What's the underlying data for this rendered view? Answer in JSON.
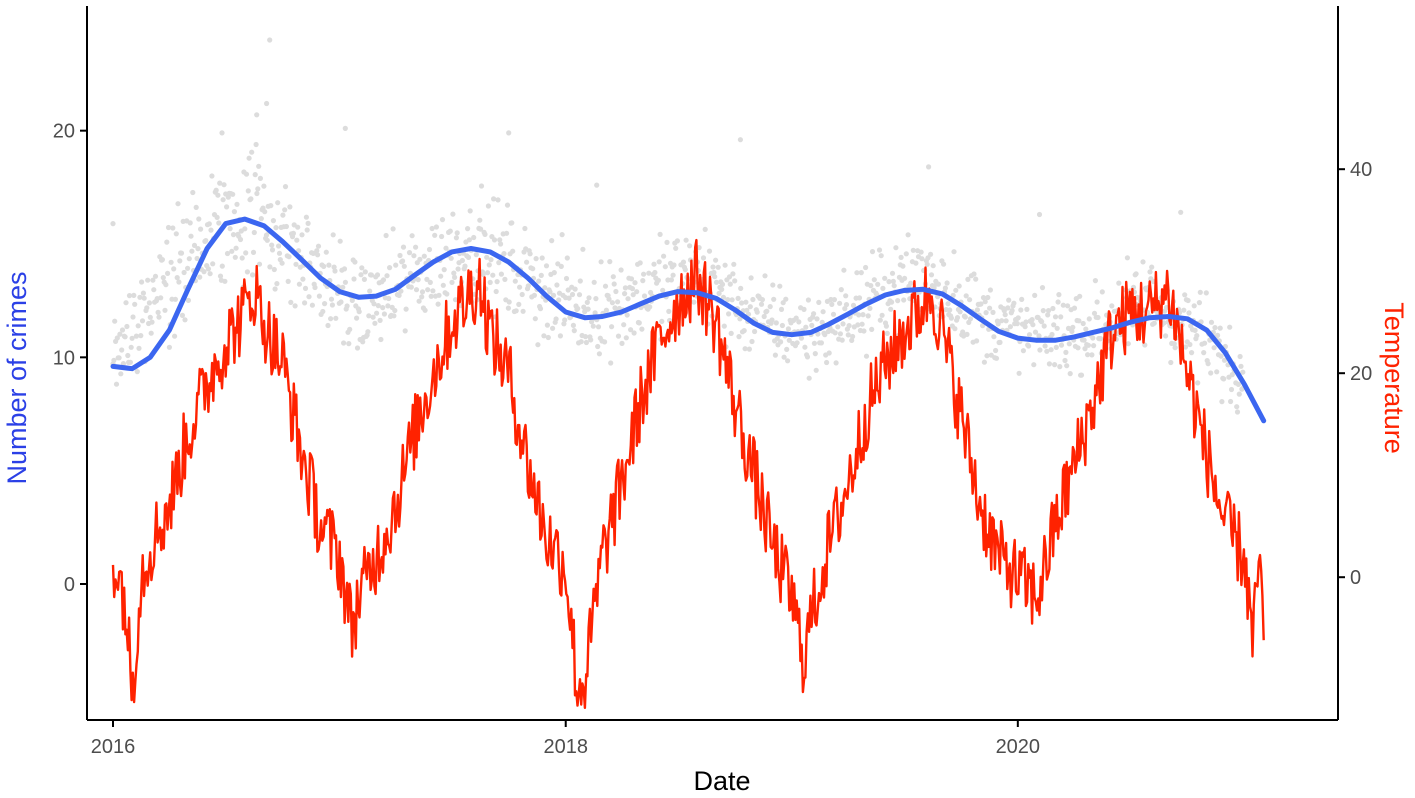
{
  "chart_data": {
    "type": "line",
    "xlabel": "Date",
    "ylabel_left": "Number of crimes",
    "ylabel_right": "Temperature",
    "x_range": [
      "2015-11-20",
      "2021-06-01"
    ],
    "x_ticks": [
      {
        "date": "2016-01-01",
        "label": "2016"
      },
      {
        "date": "2018-01-01",
        "label": "2018"
      },
      {
        "date": "2020-01-01",
        "label": "2020"
      }
    ],
    "y_left_range": [
      -6,
      25.5
    ],
    "y_left_ticks": [
      0,
      10,
      20
    ],
    "y_right_range": [
      -14,
      56
    ],
    "y_right_ticks": [
      0,
      20,
      40
    ],
    "colors": {
      "smooth": "#3b66f0",
      "temperature": "#ff2200",
      "points": "#dcdcdc",
      "axis": "#000000",
      "ylabel_left": "#2b40e6",
      "ylabel_right": "#ff2200",
      "xlabel": "#000000"
    },
    "series": [
      {
        "type": "scatter",
        "axis": "left",
        "color_key": "points",
        "description": "daily crime counts",
        "band": [
          [
            "2016-01-01",
            7.5,
            13
          ],
          [
            "2016-03-01",
            8.5,
            16
          ],
          [
            "2016-06-01",
            11,
            19.5
          ],
          [
            "2016-08-15",
            12,
            21.5
          ],
          [
            "2016-11-01",
            10.5,
            18
          ],
          [
            "2017-02-01",
            9,
            15
          ],
          [
            "2017-05-01",
            10,
            17
          ],
          [
            "2017-08-01",
            11.5,
            18.5
          ],
          [
            "2017-11-01",
            10,
            17
          ],
          [
            "2018-02-01",
            9,
            15
          ],
          [
            "2018-05-01",
            9.5,
            16
          ],
          [
            "2018-08-01",
            10.5,
            17
          ],
          [
            "2018-11-01",
            9,
            14.5
          ],
          [
            "2019-02-01",
            8.5,
            13.5
          ],
          [
            "2019-05-01",
            9.5,
            15
          ],
          [
            "2019-08-01",
            10.5,
            17
          ],
          [
            "2019-11-01",
            9,
            14.5
          ],
          [
            "2020-02-01",
            8.5,
            13.5
          ],
          [
            "2020-05-01",
            8.5,
            14
          ],
          [
            "2020-08-01",
            9.5,
            15.5
          ],
          [
            "2020-11-01",
            8,
            13.5
          ],
          [
            "2021-01-01",
            6.5,
            11
          ]
        ],
        "outliers": [
          [
            "2016-09-10",
            24
          ],
          [
            "2016-09-05",
            21.2
          ],
          [
            "2016-08-20",
            20.7
          ],
          [
            "2016-06-25",
            19.9
          ],
          [
            "2017-01-10",
            20.1
          ],
          [
            "2017-10-01",
            19.9
          ],
          [
            "2018-10-10",
            19.6
          ],
          [
            "2019-08-10",
            18.4
          ],
          [
            "2018-02-20",
            17.6
          ],
          [
            "2020-09-20",
            16.4
          ],
          [
            "2020-02-05",
            16.3
          ],
          [
            "2016-01-01",
            15.9
          ]
        ]
      },
      {
        "type": "line",
        "axis": "left",
        "name": "smooth",
        "color_key": "smooth",
        "points": [
          [
            "2016-01-01",
            9.6
          ],
          [
            "2016-02-01",
            9.5
          ],
          [
            "2016-03-01",
            10.0
          ],
          [
            "2016-04-01",
            11.2
          ],
          [
            "2016-05-01",
            13.0
          ],
          [
            "2016-06-01",
            14.8
          ],
          [
            "2016-07-01",
            15.9
          ],
          [
            "2016-08-01",
            16.1
          ],
          [
            "2016-09-01",
            15.8
          ],
          [
            "2016-10-01",
            15.1
          ],
          [
            "2016-11-01",
            14.3
          ],
          [
            "2016-12-01",
            13.5
          ],
          [
            "2017-01-01",
            12.9
          ],
          [
            "2017-02-01",
            12.65
          ],
          [
            "2017-03-01",
            12.7
          ],
          [
            "2017-04-01",
            13.0
          ],
          [
            "2017-05-01",
            13.6
          ],
          [
            "2017-06-01",
            14.2
          ],
          [
            "2017-07-01",
            14.65
          ],
          [
            "2017-08-01",
            14.8
          ],
          [
            "2017-09-01",
            14.65
          ],
          [
            "2017-10-01",
            14.2
          ],
          [
            "2017-11-01",
            13.5
          ],
          [
            "2017-12-01",
            12.7
          ],
          [
            "2018-01-01",
            12.0
          ],
          [
            "2018-02-01",
            11.75
          ],
          [
            "2018-03-01",
            11.8
          ],
          [
            "2018-04-01",
            12.0
          ],
          [
            "2018-05-01",
            12.35
          ],
          [
            "2018-06-01",
            12.7
          ],
          [
            "2018-07-01",
            12.9
          ],
          [
            "2018-08-01",
            12.85
          ],
          [
            "2018-09-01",
            12.6
          ],
          [
            "2018-10-01",
            12.1
          ],
          [
            "2018-11-01",
            11.5
          ],
          [
            "2018-12-01",
            11.1
          ],
          [
            "2019-01-01",
            11.0
          ],
          [
            "2019-02-01",
            11.1
          ],
          [
            "2019-03-01",
            11.45
          ],
          [
            "2019-04-01",
            11.9
          ],
          [
            "2019-05-01",
            12.35
          ],
          [
            "2019-06-01",
            12.75
          ],
          [
            "2019-07-01",
            12.95
          ],
          [
            "2019-08-01",
            13.0
          ],
          [
            "2019-09-01",
            12.8
          ],
          [
            "2019-10-01",
            12.3
          ],
          [
            "2019-11-01",
            11.7
          ],
          [
            "2019-12-01",
            11.15
          ],
          [
            "2020-01-01",
            10.85
          ],
          [
            "2020-02-01",
            10.75
          ],
          [
            "2020-03-01",
            10.75
          ],
          [
            "2020-04-01",
            10.9
          ],
          [
            "2020-05-01",
            11.1
          ],
          [
            "2020-06-01",
            11.3
          ],
          [
            "2020-07-01",
            11.55
          ],
          [
            "2020-08-01",
            11.75
          ],
          [
            "2020-09-01",
            11.8
          ],
          [
            "2020-10-01",
            11.7
          ],
          [
            "2020-11-01",
            11.2
          ],
          [
            "2020-12-01",
            10.2
          ],
          [
            "2021-01-01",
            8.8
          ],
          [
            "2021-02-01",
            7.2
          ]
        ]
      },
      {
        "type": "line",
        "axis": "right",
        "name": "temperature",
        "color_key": "temperature",
        "description": "daily temperature",
        "points": [
          [
            "2016-01-01",
            2
          ],
          [
            "2016-01-20",
            -2
          ],
          [
            "2016-02-01",
            -11
          ],
          [
            "2016-02-15",
            0
          ],
          [
            "2016-03-01",
            3
          ],
          [
            "2016-04-01",
            7
          ],
          [
            "2016-05-01",
            14
          ],
          [
            "2016-06-01",
            19
          ],
          [
            "2016-07-01",
            23
          ],
          [
            "2016-08-01",
            26
          ],
          [
            "2016-08-15",
            28.5
          ],
          [
            "2016-09-01",
            25
          ],
          [
            "2016-10-01",
            21
          ],
          [
            "2016-11-01",
            12
          ],
          [
            "2016-12-01",
            5
          ],
          [
            "2017-01-01",
            2
          ],
          [
            "2017-01-20",
            -5
          ],
          [
            "2017-02-01",
            -2
          ],
          [
            "2017-03-01",
            2
          ],
          [
            "2017-04-01",
            7
          ],
          [
            "2017-05-01",
            14
          ],
          [
            "2017-06-01",
            20
          ],
          [
            "2017-07-01",
            25
          ],
          [
            "2017-08-01",
            28
          ],
          [
            "2017-08-15",
            29
          ],
          [
            "2017-09-01",
            24
          ],
          [
            "2017-10-01",
            20
          ],
          [
            "2017-11-01",
            11
          ],
          [
            "2017-12-01",
            4
          ],
          [
            "2018-01-01",
            1
          ],
          [
            "2018-01-20",
            -11
          ],
          [
            "2018-02-01",
            -10
          ],
          [
            "2018-03-01",
            2
          ],
          [
            "2018-04-01",
            9
          ],
          [
            "2018-05-01",
            17
          ],
          [
            "2018-06-01",
            23
          ],
          [
            "2018-07-01",
            27
          ],
          [
            "2018-08-01",
            29.5
          ],
          [
            "2018-09-01",
            25
          ],
          [
            "2018-10-01",
            17
          ],
          [
            "2018-11-01",
            10
          ],
          [
            "2018-12-01",
            3
          ],
          [
            "2019-01-01",
            -2
          ],
          [
            "2019-01-20",
            -8
          ],
          [
            "2019-02-01",
            -4
          ],
          [
            "2019-03-01",
            3
          ],
          [
            "2019-04-01",
            9
          ],
          [
            "2019-05-01",
            16
          ],
          [
            "2019-06-01",
            21
          ],
          [
            "2019-07-01",
            24
          ],
          [
            "2019-08-01",
            27
          ],
          [
            "2019-08-15",
            28
          ],
          [
            "2019-09-01",
            24
          ],
          [
            "2019-10-01",
            16
          ],
          [
            "2019-11-01",
            7
          ],
          [
            "2019-12-01",
            2
          ],
          [
            "2020-01-01",
            0
          ],
          [
            "2020-02-01",
            -2
          ],
          [
            "2020-03-01",
            5
          ],
          [
            "2020-04-01",
            11
          ],
          [
            "2020-05-01",
            17
          ],
          [
            "2020-06-01",
            24
          ],
          [
            "2020-07-01",
            26
          ],
          [
            "2020-08-01",
            26
          ],
          [
            "2020-09-01",
            28
          ],
          [
            "2020-10-01",
            20
          ],
          [
            "2020-11-01",
            12
          ],
          [
            "2020-12-01",
            5
          ],
          [
            "2021-01-01",
            2
          ],
          [
            "2021-01-15",
            -7
          ],
          [
            "2021-01-25",
            3
          ],
          [
            "2021-02-01",
            -7
          ]
        ]
      }
    ]
  }
}
